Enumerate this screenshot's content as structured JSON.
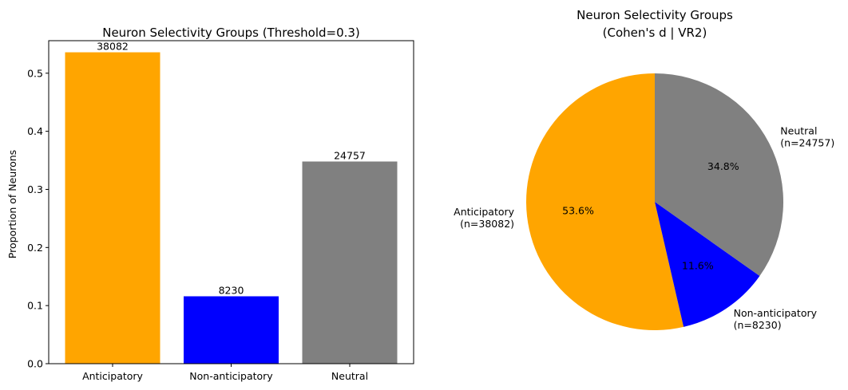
{
  "chart_data": [
    {
      "type": "bar",
      "title": "Neuron Selectivity Groups (Threshold=0.3)",
      "xlabel": "",
      "ylabel": "Proportion of Neurons",
      "ylim": [
        0,
        0.556
      ],
      "yticks": [
        "0.0",
        "0.1",
        "0.2",
        "0.3",
        "0.4",
        "0.5"
      ],
      "grid": false,
      "categories": [
        "Anticipatory",
        "Non-anticipatory",
        "Neutral"
      ],
      "values": [
        0.536,
        0.116,
        0.348
      ],
      "counts": [
        "38082",
        "8230",
        "24757"
      ],
      "colors": [
        "#ffa500",
        "#0000ff",
        "#808080"
      ]
    },
    {
      "type": "pie",
      "title_lines": [
        "Neuron Selectivity Groups",
        "(Cohen's d | VR2)"
      ],
      "labels": [
        "Anticipatory",
        "Non-anticipatory",
        "Neutral"
      ],
      "label_counts": [
        "(n=38082)",
        "(n=8230)",
        "(n=24757)"
      ],
      "values": [
        53.6,
        11.6,
        34.8
      ],
      "pct_labels": [
        "53.6%",
        "11.6%",
        "34.8%"
      ],
      "colors": [
        "#ffa500",
        "#0000ff",
        "#808080"
      ]
    }
  ]
}
